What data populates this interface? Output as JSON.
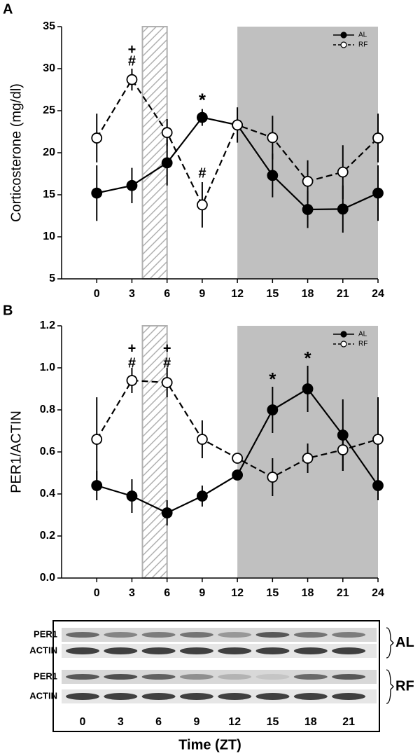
{
  "chart_data": [
    {
      "type": "line",
      "panel": "A",
      "ylabel": "Corticosterone (mg/dl)",
      "x": [
        0,
        3,
        6,
        9,
        12,
        15,
        18,
        21,
        24
      ],
      "xlim": [
        -3,
        24
      ],
      "xticks": [
        0,
        3,
        6,
        9,
        12,
        15,
        18,
        21,
        24
      ],
      "ylim": [
        5,
        35
      ],
      "yticks": [
        5,
        10,
        15,
        20,
        25,
        30,
        35
      ],
      "legend": "top-right",
      "hatched_region": [
        3.9,
        6
      ],
      "shaded_region": [
        12,
        24
      ],
      "series": [
        {
          "name": "AL",
          "color": "#000000",
          "marker_fill": "#000000",
          "dashed": false,
          "values": [
            15.2,
            16.1,
            18.8,
            24.2,
            23.3,
            17.3,
            13.25,
            13.3,
            15.2
          ],
          "errors": [
            3.3,
            2.1,
            2.7,
            1.0,
            2.1,
            2.6,
            2.2,
            2.8,
            3.3
          ]
        },
        {
          "name": "RF",
          "color": "#000000",
          "marker_fill": "#ffffff",
          "dashed": true,
          "values": [
            21.75,
            28.7,
            22.4,
            13.8,
            23.3,
            21.8,
            16.6,
            17.7,
            21.75
          ],
          "errors": [
            2.9,
            1.3,
            1.6,
            2.7,
            0.4,
            2.6,
            2.5,
            3.2,
            2.9
          ]
        }
      ],
      "annotations": [
        {
          "text": "+",
          "x": 3,
          "y": 32.2
        },
        {
          "text": "#",
          "x": 3,
          "y": 30.8
        },
        {
          "text": "*",
          "x": 9,
          "y": 26.1
        },
        {
          "text": "#",
          "x": 9,
          "y": 17.5
        }
      ]
    },
    {
      "type": "line",
      "panel": "B",
      "ylabel": "PER1/ACTIN",
      "x": [
        0,
        3,
        6,
        9,
        12,
        15,
        18,
        21,
        24
      ],
      "xlim": [
        -3,
        24
      ],
      "xticks": [
        0,
        3,
        6,
        9,
        12,
        15,
        18,
        21,
        24
      ],
      "ylim": [
        0,
        1.2
      ],
      "yticks": [
        {
          "value": 0,
          "label": "0.0"
        },
        0.2,
        0.4,
        0.6,
        0.8,
        {
          "value": 1,
          "label": "1.0"
        },
        1.2
      ],
      "legend": "top-right",
      "hatched_region": [
        3.9,
        6
      ],
      "shaded_region": [
        12,
        24
      ],
      "series": [
        {
          "name": "AL",
          "color": "#000000",
          "marker_fill": "#000000",
          "dashed": false,
          "values": [
            0.44,
            0.39,
            0.31,
            0.39,
            0.49,
            0.8,
            0.9,
            0.68,
            0.44
          ],
          "errors": [
            0.07,
            0.08,
            0.06,
            0.05,
            0.02,
            0.11,
            0.11,
            0.17,
            0.07
          ]
        },
        {
          "name": "RF",
          "color": "#000000",
          "marker_fill": "#ffffff",
          "dashed": true,
          "values": [
            0.66,
            0.94,
            0.93,
            0.66,
            0.57,
            0.48,
            0.57,
            0.61,
            0.66
          ],
          "errors": [
            0.2,
            0.06,
            0.07,
            0.09,
            0.01,
            0.09,
            0.07,
            0.1,
            0.2
          ]
        }
      ],
      "annotations": [
        {
          "text": "+",
          "x": 3,
          "y": 1.09
        },
        {
          "text": "#",
          "x": 3,
          "y": 1.02
        },
        {
          "text": "+",
          "x": 6,
          "y": 1.09
        },
        {
          "text": "#",
          "x": 6,
          "y": 1.02
        },
        {
          "text": "*",
          "x": 15,
          "y": 0.94
        },
        {
          "text": "*",
          "x": 18,
          "y": 1.04
        }
      ]
    }
  ],
  "blot": {
    "rows": [
      "PER1",
      "ACTIN",
      "PER1",
      "ACTIN"
    ],
    "groups": [
      "AL",
      "RF"
    ],
    "lanes": [
      "0",
      "3",
      "6",
      "9",
      "12",
      "15",
      "18",
      "21"
    ],
    "xlabel": "Time (ZT)"
  }
}
